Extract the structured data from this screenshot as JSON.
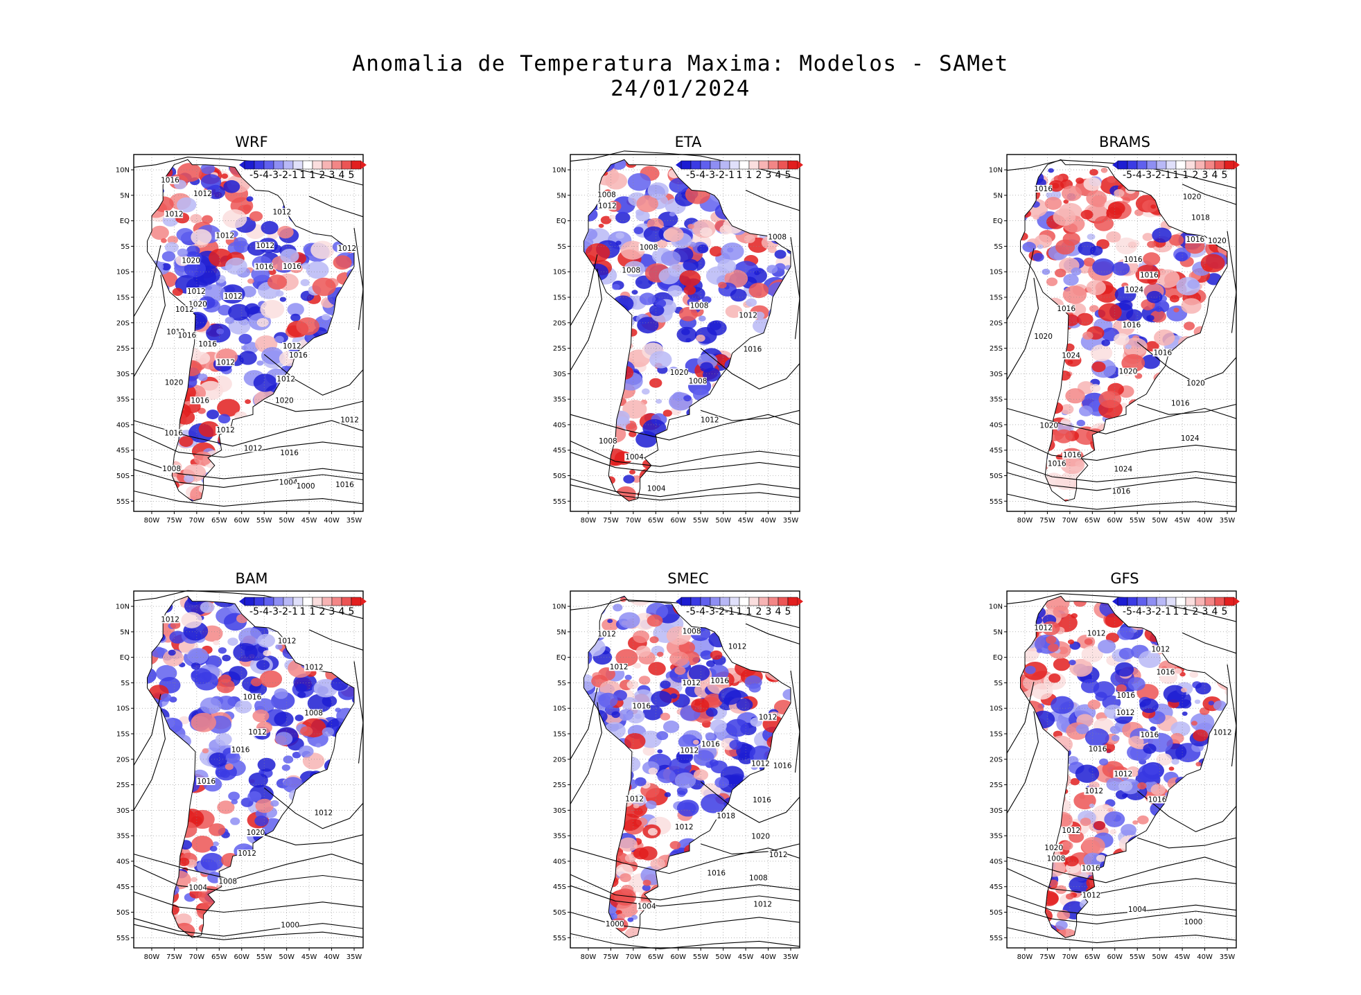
{
  "title": "Anomalia de Temperatura Maxima: Modelos - SAMet",
  "date": "24/01/2024",
  "lat_labels": [
    "10N",
    "5N",
    "EQ",
    "5S",
    "10S",
    "15S",
    "20S",
    "25S",
    "30S",
    "35S",
    "40S",
    "45S",
    "50S",
    "55S"
  ],
  "lon_labels": [
    "80W",
    "75W",
    "70W",
    "65W",
    "60W",
    "55W",
    "50W",
    "45W",
    "40W",
    "35W"
  ],
  "colorbar": {
    "labels": [
      "-5",
      "-4",
      "-3",
      "-2",
      "-1",
      "1",
      "1",
      "2",
      "3",
      "4",
      "5"
    ],
    "colors": [
      "#1d1dd2",
      "#3b3be4",
      "#6060ee",
      "#8e8ef3",
      "#b8b8f6",
      "#e0e0fa",
      "#ffffff",
      "#fadede",
      "#f7b4b4",
      "#f38686",
      "#ec5555",
      "#e21f1f"
    ]
  },
  "colors": {
    "negative_anomaly": "#2a2adf",
    "positive_anomaly": "#e52a2a",
    "neutral": "#ffffff",
    "isobar": "#000000"
  },
  "panels": [
    {
      "name": "WRF",
      "isobars": [
        "1016",
        "1012",
        "1012",
        "1012",
        "1012",
        "1012",
        "1012",
        "1020",
        "1016",
        "1016",
        "1012",
        "1012",
        "1020",
        "1012",
        "1012",
        "1016",
        "1016",
        "1012",
        "1016",
        "1012",
        "1020",
        "1012",
        "1016",
        "1020",
        "1012",
        "1016",
        "1012",
        "1016",
        "1012",
        "1008",
        "1004",
        "1000",
        "1016"
      ]
    },
    {
      "name": "ETA",
      "isobars": [
        "1008",
        "1012",
        "1008",
        "1008",
        "1008",
        "1008",
        "1012",
        "1016",
        "1020",
        "1008",
        "1012",
        "1008",
        "1004",
        "1004"
      ]
    },
    {
      "name": "BRAMS",
      "isobars": [
        "1016",
        "1020",
        "1018",
        "1016",
        "1020",
        "1016",
        "1016",
        "1024",
        "1016",
        "1016",
        "1020",
        "1016",
        "1024",
        "1020",
        "1020",
        "1016",
        "1020",
        "1024",
        "1016",
        "1016",
        "1024",
        "1016"
      ]
    },
    {
      "name": "BAM",
      "isobars": [
        "1012",
        "1012",
        "1012",
        "1016",
        "1008",
        "1012",
        "1016",
        "1016",
        "1012",
        "1020",
        "1012",
        "1008",
        "1004",
        "1000"
      ]
    },
    {
      "name": "SMEC",
      "isobars": [
        "1012",
        "1008",
        "1012",
        "1012",
        "1016",
        "1012",
        "1016",
        "1012",
        "1016",
        "1012",
        "1012",
        "1016",
        "1012",
        "1016",
        "1018",
        "1012",
        "1020",
        "1012",
        "1016",
        "1008",
        "1012",
        "1004",
        "1000"
      ]
    },
    {
      "name": "GFS",
      "isobars": [
        "1012",
        "1012",
        "1012",
        "1016",
        "1016",
        "1012",
        "1012",
        "1016",
        "1016",
        "1012",
        "1012",
        "1016",
        "1012",
        "1020",
        "1008",
        "1016",
        "1012",
        "1004",
        "1000"
      ]
    }
  ]
}
